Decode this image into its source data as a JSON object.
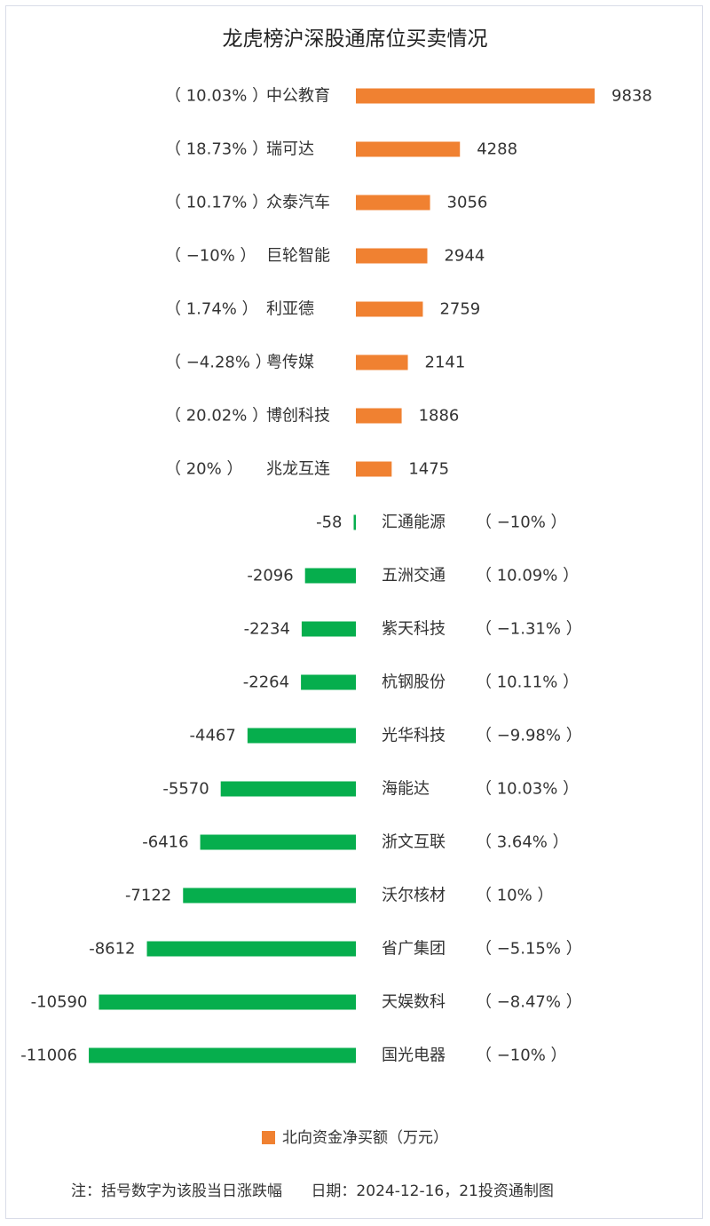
{
  "chart_data": {
    "type": "bar",
    "orientation": "horizontal",
    "title": "龙虎榜沪深股通席位买卖情况",
    "categories": [
      "中公教育",
      "瑞可达",
      "众泰汽车",
      "巨轮智能",
      "利亚德",
      "粤传媒",
      "博创科技",
      "兆龙互连",
      "汇通能源",
      "五洲交通",
      "紫天科技",
      "杭钢股份",
      "光华科技",
      "海能达",
      "浙文互联",
      "沃尔核材",
      "省广集团",
      "天娱数科",
      "国光电器"
    ],
    "values": [
      9838,
      4288,
      3056,
      2944,
      2759,
      2141,
      1886,
      1475,
      -58,
      -2096,
      -2234,
      -2264,
      -4467,
      -5570,
      -6416,
      -7122,
      -8612,
      -10590,
      -11006
    ],
    "value_labels": [
      "9838",
      "4288",
      "3056",
      "2944",
      "2759",
      "2141",
      "1886",
      "1475",
      "-58",
      "-2096",
      "-2234",
      "-2264",
      "-4467",
      "-5570",
      "-6416",
      "-7122",
      "-8612",
      "-10590",
      "-11006"
    ],
    "pct_change_labels": [
      "（ 10.03% ）",
      "（ 18.73% ）",
      "（ 10.17% ）",
      "（ −10% ）",
      "（ 1.74% ）",
      "（ −4.28% ）",
      "（ 20.02% ）",
      "（ 20% ）",
      "（ −10% ）",
      "（ 10.09% ）",
      "（ −1.31% ）",
      "（ 10.11% ）",
      "（ −9.98% ）",
      "（ 10.03% ）",
      "（ 3.64% ）",
      "（ 10% ）",
      "（ −5.15% ）",
      "（ −8.47% ）",
      "（ −10% ）"
    ],
    "series": [
      {
        "name": "北向资金净买额（万元）",
        "values": [
          9838,
          4288,
          3056,
          2944,
          2759,
          2141,
          1886,
          1475,
          -58,
          -2096,
          -2234,
          -2264,
          -4467,
          -5570,
          -6416,
          -7122,
          -8612,
          -10590,
          -11006
        ]
      }
    ],
    "legend_position": "bottom-center",
    "grid": false
  },
  "colors": {
    "positive": "#f08131",
    "negative": "#06ae4d",
    "border": "#d9dce8"
  },
  "legend": {
    "label": "北向资金净买额（万元）"
  },
  "footer": {
    "note": "注：括号数字为该股当日涨跌幅",
    "date": "日期：2024-12-16，21投资通制图"
  }
}
